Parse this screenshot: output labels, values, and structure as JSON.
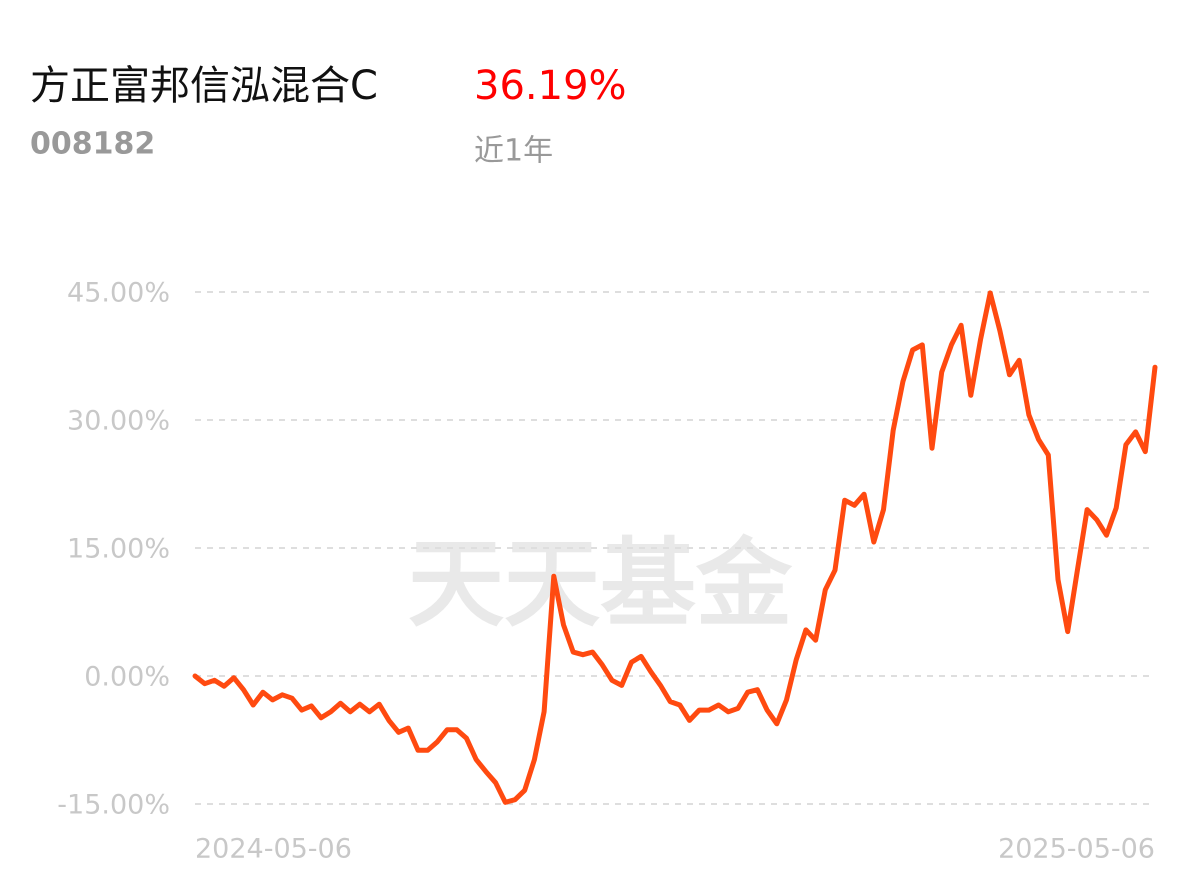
{
  "header": {
    "title": "方正富邦信泓混合C",
    "code": "008182",
    "return_label": "36.19%",
    "period": "近1年"
  },
  "watermark": "天天基金",
  "chart_data": {
    "type": "line",
    "color": "#ff4a10",
    "categories": [
      "2024-05-06",
      null,
      null,
      null,
      null,
      null,
      null,
      null,
      null,
      null,
      null,
      null,
      null,
      null,
      null,
      null,
      null,
      null,
      null,
      null,
      null,
      null,
      null,
      null,
      null,
      null,
      null,
      null,
      null,
      null,
      null,
      null,
      null,
      null,
      null,
      null,
      null,
      null,
      null,
      null,
      null,
      null,
      null,
      null,
      null,
      null,
      null,
      null,
      null,
      null,
      null,
      null,
      null,
      null,
      null,
      null,
      null,
      null,
      null,
      null,
      null,
      null,
      null,
      null,
      null,
      null,
      null,
      null,
      null,
      null,
      null,
      null,
      null,
      null,
      null,
      null,
      null,
      null,
      null,
      null,
      null,
      null,
      null,
      null,
      null,
      null,
      null,
      null,
      null,
      null,
      null,
      null,
      null,
      null,
      null,
      null,
      null,
      null,
      null,
      "2025-05-06"
    ],
    "values": [
      0,
      -0.9,
      -0.5,
      -1.2,
      -0.2,
      -1.6,
      -3.4,
      -1.9,
      -2.8,
      -2.2,
      -2.6,
      -4.0,
      -3.5,
      -4.9,
      -4.2,
      -3.2,
      -4.2,
      -3.3,
      -4.2,
      -3.3,
      -5.2,
      -6.6,
      -6.1,
      -8.7,
      -8.7,
      -7.7,
      -6.3,
      -6.3,
      -7.3,
      -9.8,
      -11.2,
      -12.5,
      -14.8,
      -14.5,
      -13.4,
      -9.8,
      -4.2,
      11.7,
      6.0,
      2.8,
      2.5,
      2.8,
      1.3,
      -0.5,
      -1.1,
      1.6,
      2.3,
      0.5,
      -1.1,
      -3.0,
      -3.4,
      -5.2,
      -4.0,
      -4.0,
      -3.4,
      -4.2,
      -3.8,
      -1.9,
      -1.6,
      -4.0,
      -5.6,
      -2.8,
      1.9,
      5.4,
      4.2,
      10.1,
      12.4,
      20.6,
      20.0,
      21.3,
      15.7,
      19.5,
      28.8,
      34.5,
      38.2,
      38.8,
      26.7,
      35.6,
      38.8,
      41.1,
      32.9,
      39.4,
      44.9,
      40.5,
      35.3,
      37.0,
      30.6,
      27.7,
      25.9,
      11.3,
      5.2,
      12.4,
      19.5,
      18.3,
      16.5,
      19.7,
      27.1,
      28.6,
      26.3,
      36.19
    ],
    "ylim": [
      -15,
      45
    ],
    "yticks": [
      {
        "value": -15,
        "label": "-15.00%"
      },
      {
        "value": 0,
        "label": "0.00%"
      },
      {
        "value": 15,
        "label": "15.00%"
      },
      {
        "value": 30,
        "label": "30.00%"
      },
      {
        "value": 45,
        "label": "45.00%"
      }
    ],
    "grid": true
  }
}
